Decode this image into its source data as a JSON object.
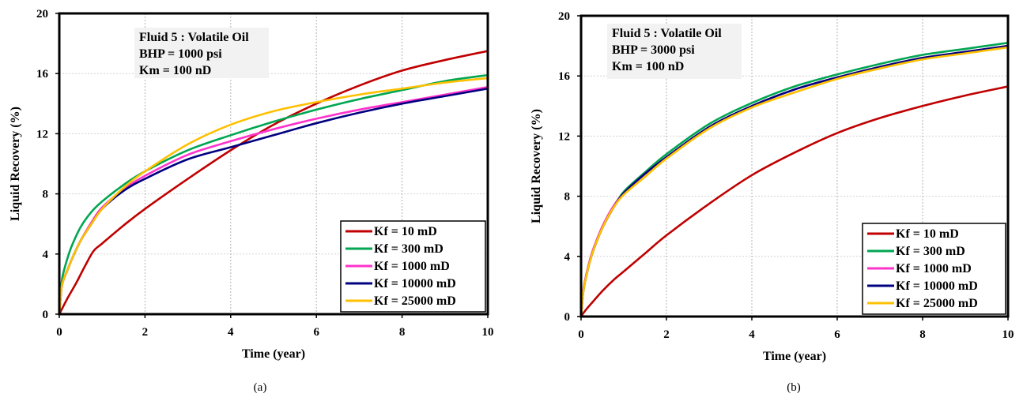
{
  "chart_data": [
    {
      "type": "line",
      "caption": "(a)",
      "xlabel": "Time (year)",
      "ylabel": "Liquid Recovery (%)",
      "xlim": [
        0,
        10
      ],
      "ylim": [
        0,
        20
      ],
      "xticks": [
        0,
        2,
        4,
        6,
        8,
        10
      ],
      "yticks": [
        0,
        4,
        8,
        12,
        16,
        20
      ],
      "grid": "vertical dashed",
      "legend_position": "bottom-right",
      "annotation": [
        "Fluid 5 : Volatile Oil",
        "BHP = 1000 psi",
        "Km = 100 nD"
      ],
      "series": [
        {
          "name": "Kf = 10 mD",
          "color": "#c00000",
          "x": [
            0,
            0.2,
            0.4,
            0.6,
            0.8,
            1,
            1.5,
            2,
            3,
            4,
            5,
            6,
            7,
            8,
            9,
            10
          ],
          "y": [
            0,
            1.1,
            2.1,
            3.2,
            4.2,
            4.7,
            5.9,
            7.0,
            9.0,
            10.9,
            12.6,
            14.0,
            15.2,
            16.2,
            16.9,
            17.5
          ]
        },
        {
          "name": "Kf = 300 mD",
          "color": "#00a651",
          "x": [
            0,
            0.05,
            0.1,
            0.2,
            0.3,
            0.5,
            0.75,
            1,
            1.5,
            2,
            3,
            4,
            5,
            6,
            7,
            8,
            9,
            10
          ],
          "y": [
            0,
            2.0,
            2.8,
            3.8,
            4.6,
            5.8,
            6.8,
            7.5,
            8.6,
            9.5,
            10.9,
            11.9,
            12.8,
            13.6,
            14.3,
            14.9,
            15.5,
            15.9
          ]
        },
        {
          "name": "Kf = 1000 mD",
          "color": "#ff33cc",
          "x": [
            0,
            0.05,
            0.1,
            0.2,
            0.3,
            0.5,
            0.75,
            1,
            1.5,
            2,
            3,
            4,
            5,
            6,
            7,
            8,
            9,
            10
          ],
          "y": [
            0,
            1.7,
            2.3,
            3.0,
            3.7,
            4.9,
            6.1,
            7.1,
            8.3,
            9.2,
            10.6,
            11.5,
            12.3,
            13.0,
            13.6,
            14.1,
            14.6,
            15.1
          ]
        },
        {
          "name": "Kf = 10000 mD",
          "color": "#000080",
          "x": [
            0,
            0.05,
            0.1,
            0.2,
            0.3,
            0.5,
            0.75,
            1,
            1.5,
            2,
            3,
            4,
            5,
            6,
            7,
            8,
            9,
            10
          ],
          "y": [
            0,
            1.7,
            2.3,
            3.0,
            3.7,
            4.9,
            6.0,
            7.0,
            8.2,
            9.0,
            10.3,
            11.1,
            11.9,
            12.7,
            13.4,
            14.0,
            14.5,
            15.0
          ]
        },
        {
          "name": "Kf = 25000 mD",
          "color": "#ffc000",
          "x": [
            0,
            0.05,
            0.1,
            0.2,
            0.3,
            0.5,
            0.75,
            1,
            1.5,
            2,
            3,
            4,
            5,
            6,
            7,
            8,
            9,
            10
          ],
          "y": [
            0,
            1.7,
            2.3,
            3.0,
            3.7,
            4.9,
            6.0,
            7.0,
            8.4,
            9.5,
            11.3,
            12.6,
            13.5,
            14.1,
            14.6,
            15.0,
            15.4,
            15.7
          ]
        }
      ]
    },
    {
      "type": "line",
      "caption": "(b)",
      "xlabel": "Time (year)",
      "ylabel": "Liquid Recovery (%)",
      "xlim": [
        0,
        10
      ],
      "ylim": [
        0,
        20
      ],
      "xticks": [
        0,
        2,
        4,
        6,
        8,
        10
      ],
      "yticks": [
        0,
        4,
        8,
        12,
        16,
        20
      ],
      "grid": "vertical dashed",
      "legend_position": "bottom-right",
      "annotation": [
        "Fluid 5 : Volatile Oil",
        "BHP = 3000 psi",
        "Km = 100 nD"
      ],
      "series": [
        {
          "name": "Kf = 10 mD",
          "color": "#c00000",
          "x": [
            0,
            0.1,
            0.25,
            0.5,
            0.75,
            1,
            1.5,
            2,
            3,
            4,
            5,
            6,
            7,
            8,
            9,
            10
          ],
          "y": [
            0,
            0.4,
            0.9,
            1.7,
            2.4,
            3.0,
            4.2,
            5.4,
            7.5,
            9.4,
            10.9,
            12.2,
            13.2,
            14.0,
            14.7,
            15.3
          ]
        },
        {
          "name": "Kf = 300 mD",
          "color": "#00a651",
          "x": [
            0,
            0.05,
            0.1,
            0.2,
            0.3,
            0.5,
            0.75,
            1,
            1.5,
            2,
            3,
            4,
            5,
            6,
            7,
            8,
            9,
            10
          ],
          "y": [
            0,
            1.6,
            2.4,
            3.6,
            4.5,
            5.9,
            7.2,
            8.3,
            9.6,
            10.8,
            12.8,
            14.2,
            15.3,
            16.1,
            16.8,
            17.4,
            17.8,
            18.2
          ]
        },
        {
          "name": "Kf = 1000 mD",
          "color": "#ff33cc",
          "x": [
            0,
            0.05,
            0.1,
            0.2,
            0.3,
            0.5,
            0.75,
            1,
            1.5,
            2,
            3,
            4,
            5,
            6,
            7,
            8,
            9,
            10
          ],
          "y": [
            0,
            1.7,
            2.5,
            3.7,
            4.6,
            6.0,
            7.3,
            8.2,
            9.5,
            10.6,
            12.6,
            14.0,
            15.1,
            15.9,
            16.6,
            17.2,
            17.6,
            18.0
          ]
        },
        {
          "name": "Kf = 10000 mD",
          "color": "#000080",
          "x": [
            0,
            0.05,
            0.1,
            0.2,
            0.3,
            0.5,
            0.75,
            1,
            1.5,
            2,
            3,
            4,
            5,
            6,
            7,
            8,
            9,
            10
          ],
          "y": [
            0,
            1.6,
            2.4,
            3.6,
            4.5,
            5.9,
            7.2,
            8.2,
            9.5,
            10.6,
            12.6,
            14.0,
            15.1,
            15.9,
            16.6,
            17.2,
            17.6,
            18.0
          ]
        },
        {
          "name": "Kf = 25000 mD",
          "color": "#ffc000",
          "x": [
            0,
            0.05,
            0.1,
            0.2,
            0.3,
            0.5,
            0.75,
            1,
            1.5,
            2,
            3,
            4,
            5,
            6,
            7,
            8,
            9,
            10
          ],
          "y": [
            0,
            1.6,
            2.4,
            3.6,
            4.5,
            5.9,
            7.2,
            8.1,
            9.3,
            10.5,
            12.5,
            13.9,
            14.9,
            15.8,
            16.5,
            17.1,
            17.5,
            17.9
          ]
        }
      ]
    }
  ]
}
